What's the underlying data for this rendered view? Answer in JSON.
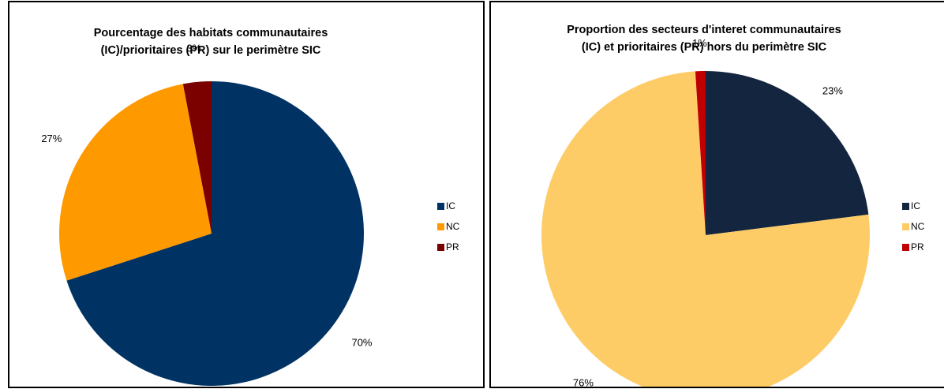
{
  "chart_data": [
    {
      "type": "pie",
      "title_lines": [
        "Pourcentage des habitats communautaires",
        "(IC)/prioritaires (PR) sur le perimètre SIC"
      ],
      "slices": [
        {
          "label": "IC",
          "value": 70,
          "display": "70%",
          "color": "#003263"
        },
        {
          "label": "NC",
          "value": 27,
          "display": "27%",
          "color": "#FF9900"
        },
        {
          "label": "PR",
          "value": 3,
          "display": "3%",
          "color": "#7B0000"
        }
      ],
      "legend": [
        "IC",
        "NC",
        "PR"
      ],
      "legend_position": "right"
    },
    {
      "type": "pie",
      "title_lines": [
        "Proportion des secteurs d'interet communautaires",
        "(IC) et prioritaires (PR) hors du perimètre SIC"
      ],
      "slices": [
        {
          "label": "IC",
          "value": 23,
          "display": "23%",
          "color": "#13253F"
        },
        {
          "label": "NC",
          "value": 76,
          "display": "76%",
          "color": "#FECC66"
        },
        {
          "label": "PR",
          "value": 1,
          "display": "1%",
          "color": "#C00000"
        }
      ],
      "legend": [
        "IC",
        "NC",
        "PR"
      ],
      "legend_position": "right"
    }
  ]
}
